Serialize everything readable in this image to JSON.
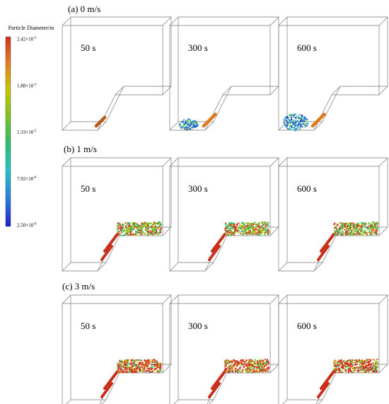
{
  "colorbar": {
    "title": "Particle Diameter/m",
    "ticks": [
      {
        "mantissa": "2.42×10",
        "exp": "-5",
        "value": 2.42e-05
      },
      {
        "mantissa": "1.88×10",
        "exp": "-5",
        "value": 1.88e-05
      },
      {
        "mantissa": "1.33×10",
        "exp": "-5",
        "value": 1.33e-05
      },
      {
        "mantissa": "7.92×10",
        "exp": "-6",
        "value": 7.92e-06
      },
      {
        "mantissa": "2.50×10",
        "exp": "-6",
        "value": 2.5e-06
      }
    ],
    "colors": [
      "#d7301f",
      "#e67e22",
      "#c8c800",
      "#7cc420",
      "#2ebd6b",
      "#22c7c7",
      "#2a7fe0",
      "#1f1fd0"
    ]
  },
  "rows": [
    {
      "label": "(a) 0 m/s",
      "panels": [
        {
          "time": "50 s"
        },
        {
          "time": "300 s"
        },
        {
          "time": "600 s"
        }
      ]
    },
    {
      "label": "(b) 1 m/s",
      "panels": [
        {
          "time": "50 s"
        },
        {
          "time": "300 s"
        },
        {
          "time": "600 s"
        }
      ]
    },
    {
      "label": "(c) 3 m/s",
      "panels": [
        {
          "time": "50 s"
        },
        {
          "time": "300 s"
        },
        {
          "time": "600 s"
        }
      ]
    }
  ]
}
